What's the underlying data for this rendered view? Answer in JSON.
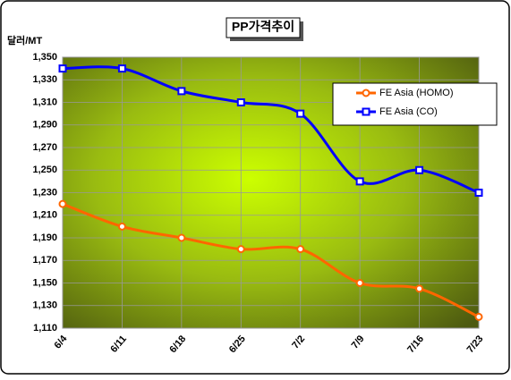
{
  "chart_data": {
    "type": "line",
    "title": "PP가격추이",
    "y_label": "달러/MT",
    "categories": [
      "6/4",
      "6/11",
      "6/18",
      "6/25",
      "7/2",
      "7/9",
      "7/16",
      "7/23"
    ],
    "series": [
      {
        "name": "FE Asia (HOMO)",
        "color": "#ff6600",
        "marker": "circle",
        "values": [
          1220,
          1200,
          1190,
          1180,
          1180,
          1150,
          1145,
          1120
        ]
      },
      {
        "name": "FE Asia (CO)",
        "color": "#0000ff",
        "marker": "square",
        "values": [
          1340,
          1340,
          1320,
          1310,
          1300,
          1240,
          1250,
          1230
        ]
      }
    ],
    "ylim": [
      1110,
      1350
    ],
    "yticks": [
      {
        "value": 1110,
        "label": "1,110"
      },
      {
        "value": 1130,
        "label": "1,130"
      },
      {
        "value": 1150,
        "label": "1,150"
      },
      {
        "value": 1170,
        "label": "1,170"
      },
      {
        "value": 1190,
        "label": "1,190"
      },
      {
        "value": 1210,
        "label": "1,210"
      },
      {
        "value": 1230,
        "label": "1,230"
      },
      {
        "value": 1250,
        "label": "1,250"
      },
      {
        "value": 1270,
        "label": "1,270"
      },
      {
        "value": 1290,
        "label": "1,290"
      },
      {
        "value": 1310,
        "label": "1,310"
      },
      {
        "value": 1330,
        "label": "1,330"
      },
      {
        "value": 1350,
        "label": "1,350"
      }
    ],
    "grid": true,
    "legend": "upper right"
  }
}
